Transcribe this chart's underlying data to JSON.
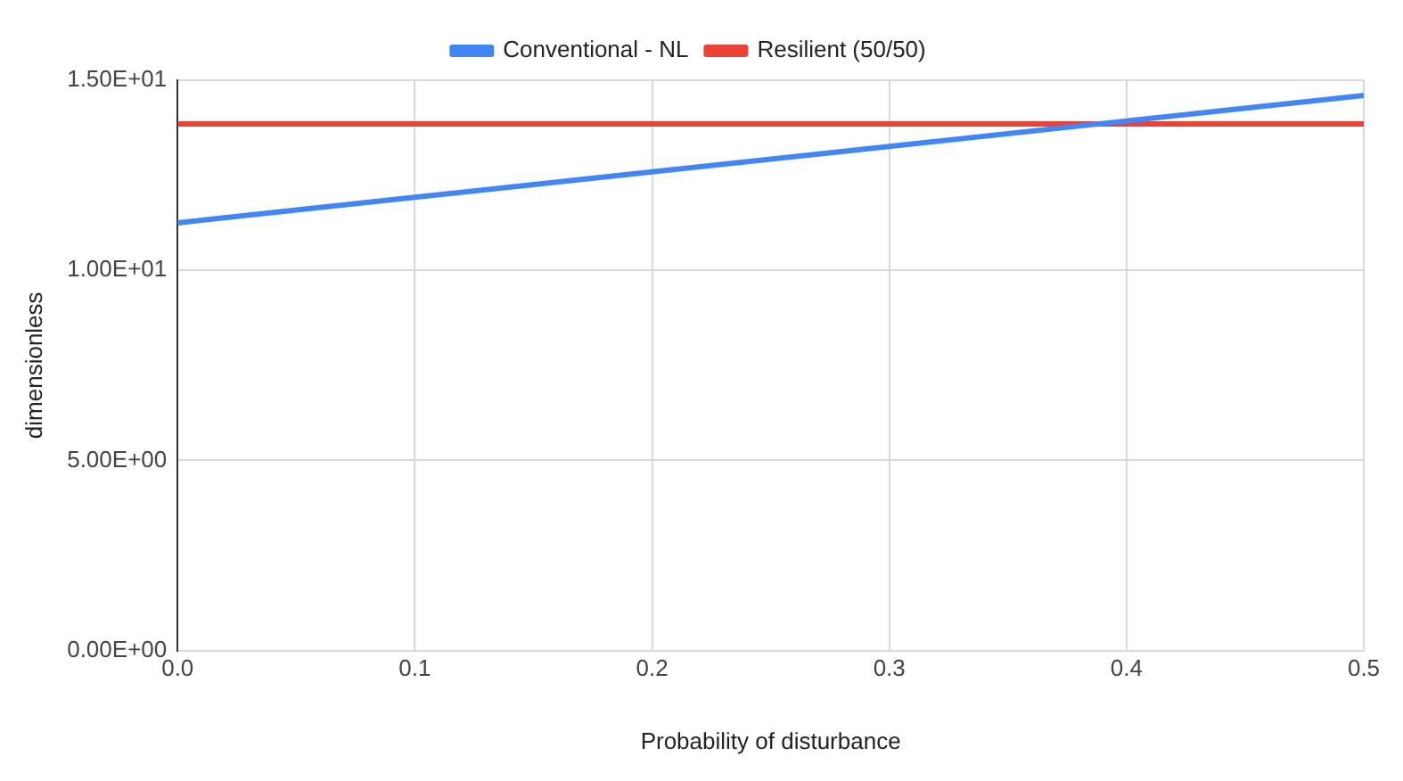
{
  "chart_data": {
    "type": "line",
    "xlabel": "Probability of disturbance",
    "ylabel": "dimensionless",
    "x": [
      0,
      0.1,
      0.2,
      0.3,
      0.4,
      0.5
    ],
    "series": [
      {
        "name": "Conventional - NL",
        "color": "#4285f4",
        "values": [
          11.25,
          11.92,
          12.59,
          13.26,
          13.93,
          14.6
        ]
      },
      {
        "name": "Resilient (50/50)",
        "color": "#ea4335",
        "values": [
          13.85,
          13.85,
          13.85,
          13.85,
          13.85,
          13.85
        ]
      }
    ],
    "xlim": [
      0,
      0.5
    ],
    "xticks": [
      {
        "value": 0,
        "label": "0.0"
      },
      0.1,
      0.2,
      0.3,
      0.4,
      0.5
    ],
    "ylim": [
      0,
      15
    ],
    "yticks": [
      {
        "value": 0,
        "label": "0.00E+00"
      },
      {
        "value": 5,
        "label": "5.00E+00"
      },
      {
        "value": 10,
        "label": "1.00E+01"
      },
      {
        "value": 15,
        "label": "1.50E+01"
      }
    ],
    "grid": true,
    "legend": "top",
    "marker": "none",
    "line_style": "solid"
  }
}
